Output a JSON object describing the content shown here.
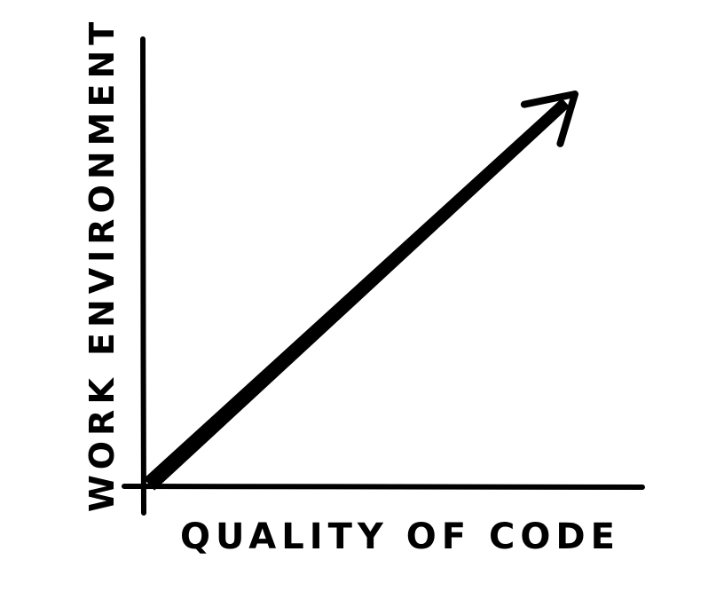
{
  "chart_data": {
    "type": "line",
    "title": "",
    "xlabel": "QUALITY OF CODE",
    "ylabel": "WORK ENVIRONMENT",
    "series": [
      {
        "x": [
          0,
          1
        ],
        "y": [
          0,
          1
        ]
      }
    ],
    "xlim": [
      0,
      1
    ],
    "ylim": [
      0,
      1
    ],
    "grid": false,
    "arrowhead": true,
    "colors": {
      "ink": "#000000",
      "background": "#ffffff"
    }
  }
}
